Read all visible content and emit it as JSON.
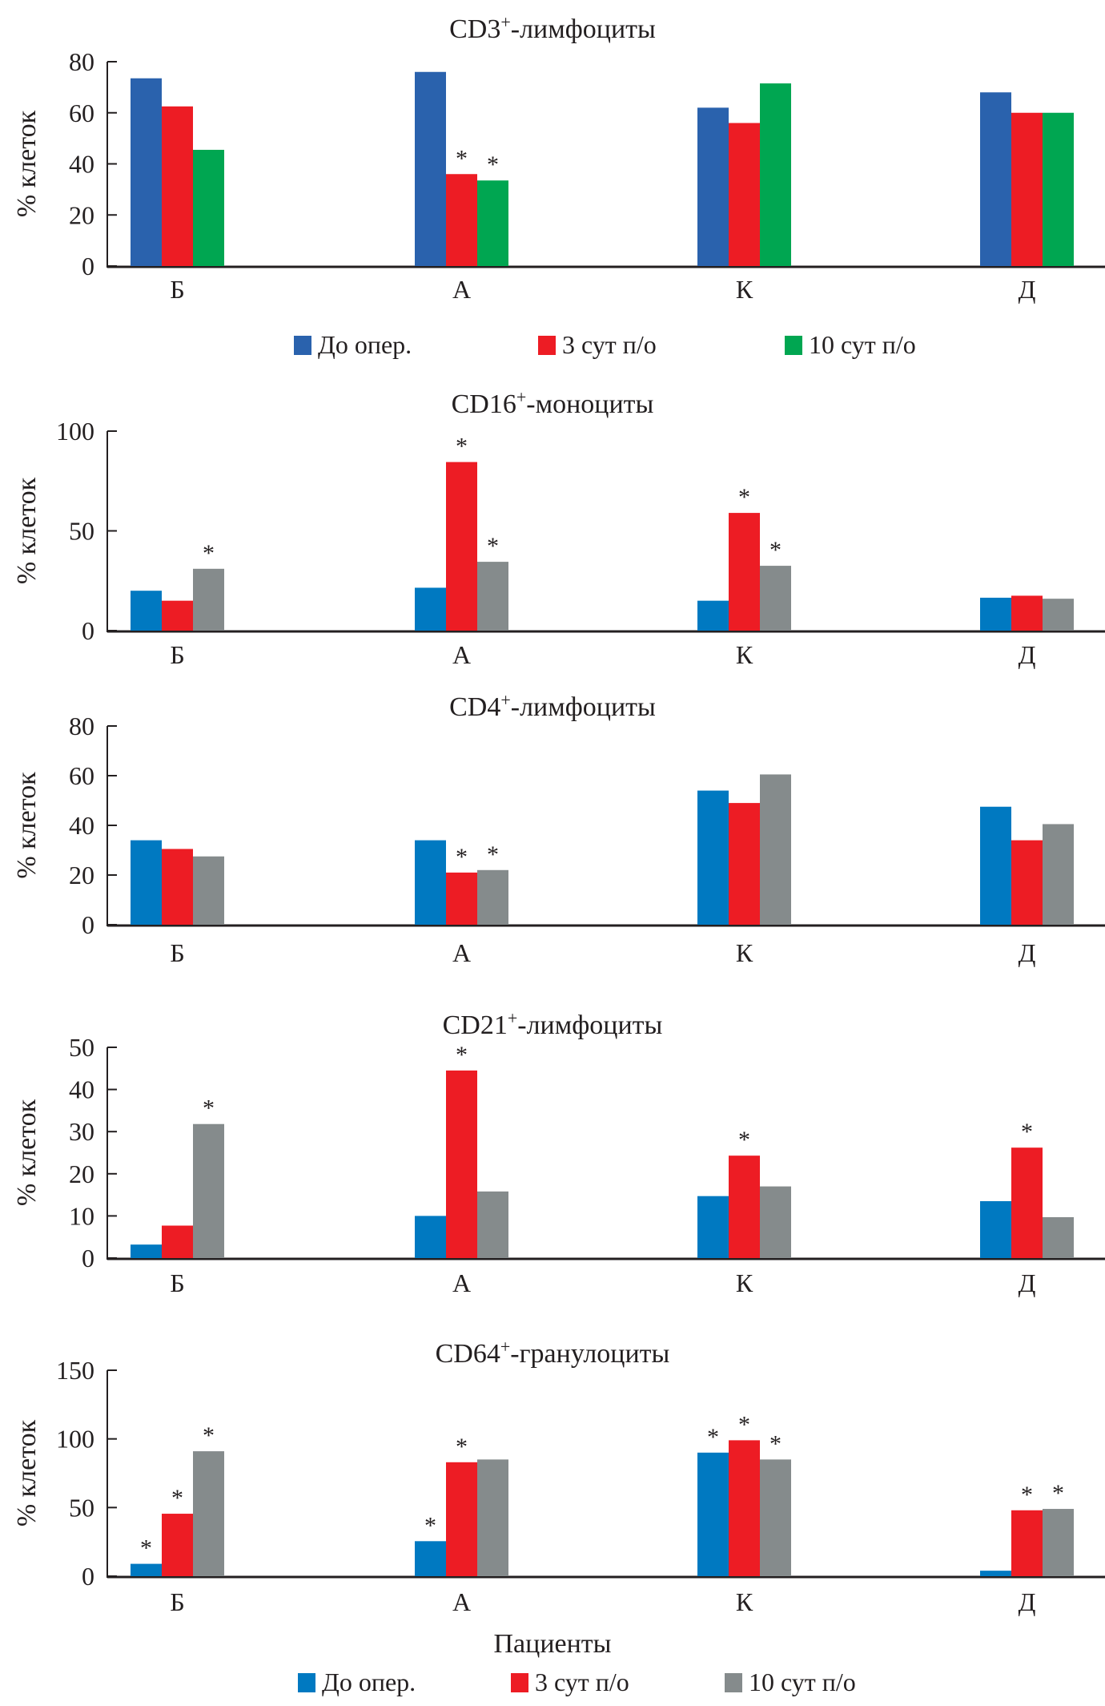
{
  "chart_data": [
    {
      "type": "bar",
      "title": "CD3⁺-лимфоциты",
      "title_main": "CD3",
      "title_sup": "+",
      "title_rest": "-лимфоциты",
      "ylabel": "% клеток",
      "xlabel": "",
      "ylim": [
        0,
        80
      ],
      "yticks": [
        0,
        20,
        40,
        60,
        80
      ],
      "categories": [
        "Б",
        "А",
        "К",
        "Д"
      ],
      "colors": [
        "#2a62ad",
        "#ed1c24",
        "#00a651"
      ],
      "series": [
        {
          "name": "До опер.",
          "values": [
            73.5,
            76,
            62,
            68
          ]
        },
        {
          "name": "3 сут п/о",
          "values": [
            62.5,
            36,
            56,
            60
          ]
        },
        {
          "name": "10 сут п/о",
          "values": [
            45.5,
            33.5,
            71.5,
            60
          ]
        }
      ],
      "significance": [
        [
          false,
          false,
          false,
          false
        ],
        [
          false,
          true,
          false,
          false
        ],
        [
          false,
          true,
          false,
          false
        ]
      ],
      "legend": {
        "placement": "bottom",
        "items": [
          "До опер.",
          "3 сут п/о",
          "10 сут п/о"
        ]
      }
    },
    {
      "type": "bar",
      "title": "CD16⁺-моноциты",
      "title_main": "CD16",
      "title_sup": "+",
      "title_rest": "-моноциты",
      "ylabel": "% клеток",
      "xlabel": "",
      "ylim": [
        0,
        100
      ],
      "yticks": [
        0,
        50,
        100
      ],
      "categories": [
        "Б",
        "А",
        "К",
        "Д"
      ],
      "colors": [
        "#0079c1",
        "#ed1c24",
        "#858b8c"
      ],
      "series": [
        {
          "name": "До опер.",
          "values": [
            20,
            21.5,
            15,
            16.5
          ]
        },
        {
          "name": "3 сут п/о",
          "values": [
            15,
            84.5,
            59,
            17.5
          ]
        },
        {
          "name": "10 сут п/о",
          "values": [
            31,
            34.5,
            32.5,
            16
          ]
        }
      ],
      "significance": [
        [
          false,
          false,
          false,
          false
        ],
        [
          false,
          true,
          true,
          false
        ],
        [
          true,
          true,
          true,
          false
        ]
      ]
    },
    {
      "type": "bar",
      "title": "CD4⁺-лимфоциты",
      "title_main": "CD4",
      "title_sup": "+",
      "title_rest": "-лимфоциты",
      "ylabel": "% клеток",
      "xlabel": "",
      "ylim": [
        0,
        80
      ],
      "yticks": [
        0,
        20,
        40,
        60,
        80
      ],
      "categories": [
        "Б",
        "А",
        "К",
        "Д"
      ],
      "colors": [
        "#0079c1",
        "#ed1c24",
        "#858b8c"
      ],
      "series": [
        {
          "name": "До опер.",
          "values": [
            34,
            34,
            54,
            47.5
          ]
        },
        {
          "name": "3 сут п/о",
          "values": [
            30.5,
            21,
            49,
            34
          ]
        },
        {
          "name": "10 сут п/о",
          "values": [
            27.5,
            22,
            60.5,
            40.5
          ]
        }
      ],
      "significance": [
        [
          false,
          false,
          false,
          false
        ],
        [
          false,
          true,
          false,
          false
        ],
        [
          false,
          true,
          false,
          false
        ]
      ]
    },
    {
      "type": "bar",
      "title": "CD21⁺-лимфоциты",
      "title_main": "CD21",
      "title_sup": "+",
      "title_rest": "-лимфоциты",
      "ylabel": "% клеток",
      "xlabel": "",
      "ylim": [
        0,
        50
      ],
      "yticks": [
        0,
        10,
        20,
        30,
        40,
        50
      ],
      "categories": [
        "Б",
        "А",
        "К",
        "Д"
      ],
      "colors": [
        "#0079c1",
        "#ed1c24",
        "#858b8c"
      ],
      "series": [
        {
          "name": "До опер.",
          "values": [
            3.2,
            10,
            14.7,
            13.5
          ]
        },
        {
          "name": "3 сут п/о",
          "values": [
            7.7,
            44.5,
            24.3,
            26.2
          ]
        },
        {
          "name": "10 сут п/о",
          "values": [
            31.8,
            15.8,
            17,
            9.7
          ]
        }
      ],
      "significance": [
        [
          false,
          false,
          false,
          false
        ],
        [
          false,
          true,
          true,
          true
        ],
        [
          true,
          false,
          false,
          false
        ]
      ]
    },
    {
      "type": "bar",
      "title": "CD64⁺-гранулоциты",
      "title_main": "CD64",
      "title_sup": "+",
      "title_rest": "-гранулоциты",
      "ylabel": "% клеток",
      "xlabel": "Пациенты",
      "ylim": [
        0,
        150
      ],
      "yticks": [
        0,
        50,
        100,
        150
      ],
      "categories": [
        "Б",
        "А",
        "К",
        "Д"
      ],
      "colors": [
        "#0079c1",
        "#ed1c24",
        "#858b8c"
      ],
      "series": [
        {
          "name": "До опер.",
          "values": [
            9,
            25.5,
            90,
            4
          ]
        },
        {
          "name": "3 сут п/о",
          "values": [
            45.5,
            83,
            99,
            48
          ]
        },
        {
          "name": "10 сут п/о",
          "values": [
            91,
            85,
            85,
            49
          ]
        }
      ],
      "significance": [
        [
          true,
          true,
          true,
          false
        ],
        [
          true,
          true,
          true,
          true
        ],
        [
          true,
          false,
          true,
          true
        ]
      ],
      "legend": {
        "placement": "bottom",
        "items": [
          "До опер.",
          "3 сут п/о",
          "10 сут п/о"
        ]
      }
    }
  ],
  "significance_marker": "*"
}
